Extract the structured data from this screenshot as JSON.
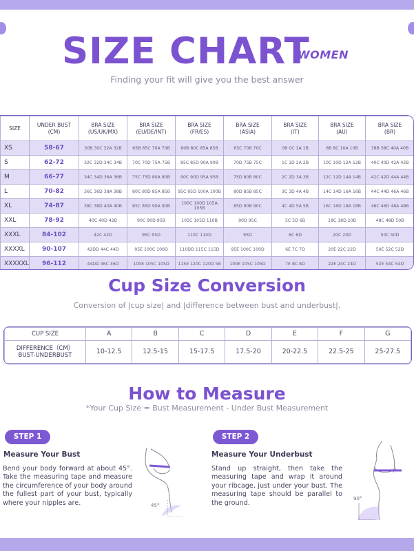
{
  "header": {
    "title": "SIZE CHART",
    "women": "WOMEN",
    "subtitle": "Finding your fit will give you the best answer"
  },
  "size_table": {
    "headers": [
      "SIZE",
      "UNDER BUST\n(CM)",
      "BRA SIZE\n(US/UK/MX)",
      "BRA SIZE\n(EU/DE/INT)",
      "BRA SIZE\n(FR/ES)",
      "BRA SIZE\n(ASIA)",
      "BRA SIZE\n(IT)",
      "BRA SIZE\n(AU)",
      "BRA SIZE\n(BR)"
    ],
    "rows": [
      {
        "size": "XS",
        "under_bust": "58-67",
        "us": "30B 30C 32A 32B",
        "eu": "65B 65C 70A 70B",
        "fr": "80B 80C 85A 85B",
        "asia": "65C 70B 70C",
        "it": "0B 0C 1A 1B",
        "au": "8B 8C 10A 10B",
        "br": "38B 38C 40A 40B"
      },
      {
        "size": "S",
        "under_bust": "62-72",
        "us": "32C 32D 34C 34B",
        "eu": "70C 70D 75A 75B",
        "fr": "85C 85D 90A 90B",
        "asia": "70D 75B 75C",
        "it": "1C 1D 2A 2B",
        "au": "10C 10D 12A 12B",
        "br": "40C 40D 42A 42B"
      },
      {
        "size": "M",
        "under_bust": "66-77",
        "us": "34C 34D 36A 36B",
        "eu": "75C 75D 80A 80B",
        "fr": "90C 90D 95A 95B",
        "asia": "75D 80B 80C",
        "it": "2C 2D 3A 3B",
        "au": "12C 12D 14A 14B",
        "br": "42C 42D 44A 44B"
      },
      {
        "size": "L",
        "under_bust": "70-82",
        "us": "36C 36D 38A 38B",
        "eu": "80C 80D 85A 85B",
        "fr": "95C 95D 100A 100B",
        "asia": "80D 85B 85C",
        "it": "3C 3D 4A 4B",
        "au": "14C 14D 16A 16B",
        "br": "44C 44D 46A 46B"
      },
      {
        "size": "XL",
        "under_bust": "74-87",
        "us": "38C 38D 40A 40B",
        "eu": "85C 85D 90A 90B",
        "fr": "100C 100D 105A 105B",
        "asia": "85D 90B 90C",
        "it": "4C 4D 5A 5B",
        "au": "16C 16D 18A 18B",
        "br": "46C 46D 48A 48B"
      },
      {
        "size": "XXL",
        "under_bust": "78-92",
        "us": "40C 40D 42B",
        "eu": "90C 90D 95B",
        "fr": "105C 105D 110B",
        "asia": "90D 95C",
        "it": "5C 5D 6B",
        "au": "18C 18D 20B",
        "br": "48C 48D 50B"
      },
      {
        "size": "XXXL",
        "under_bust": "84-102",
        "us": "42C 42D",
        "eu": "95C 95D",
        "fr": "110C 110D",
        "asia": "95D",
        "it": "6C 6D",
        "au": "20C 20D",
        "br": "50C 50D"
      },
      {
        "size": "XXXXL",
        "under_bust": "90-107",
        "us": "42DD 44C 44D",
        "eu": "95E 100C 100D",
        "fr": "110DD 115C 115D",
        "asia": "95E 100C 100D",
        "it": "6E 7C 7D",
        "au": "20E 22C 22D",
        "br": "50E 52C 52D"
      },
      {
        "size": "XXXXXL",
        "under_bust": "96-112",
        "us": "44DD 46C 46D",
        "eu": "100E 105C 105D",
        "fr": "115E 120C 120D 58",
        "asia": "100E 105C 105D",
        "it": "7E 8C 8D",
        "au": "22E 24C 24D",
        "br": "52E 54C 54D"
      }
    ]
  },
  "cup_section": {
    "title": "Cup Size Conversion",
    "subtitle": "Conversion of |cup size| and |difference between bust and underbust|.",
    "row1_label": "CUP SIZE",
    "row2_label": "DIFFERENCE（CM）\nBUST-UNDERBUST",
    "cups": [
      "A",
      "B",
      "C",
      "D",
      "E",
      "F",
      "G"
    ],
    "differences": [
      "10-12.5",
      "12.5-15",
      "15-17.5",
      "17.5-20",
      "20-22.5",
      "22.5-25",
      "25-27.5"
    ]
  },
  "how_section": {
    "title": "How to Measure",
    "subtitle": "*Your Cup Size = Bust Measurement - Under Bust Measurement"
  },
  "steps": [
    {
      "label": "STEP 1",
      "heading": "Measure Your Bust",
      "text": "Bend your body forward at about 45°. Take the measuring tape and measure the circumference of your body around the fullest part of your bust, typically where your nipples are.",
      "angle": "45°"
    },
    {
      "label": "STEP 2",
      "heading": "Measure Your Underbust",
      "text": "Stand up straight, then take the measuring tape and wrap it around your ribcage, just under your bust. The measuring tape should be parallel to the ground.",
      "angle": "90°"
    }
  ],
  "colors": {
    "accent": "#7b52cf",
    "band": "#b7a8ec",
    "row_shade": "#e3dcf7",
    "border": "#7b5fc9"
  }
}
